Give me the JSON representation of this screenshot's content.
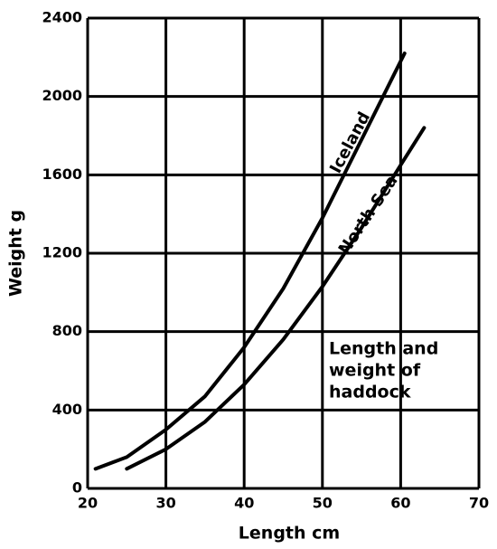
{
  "chart_data": {
    "type": "line",
    "x_label": "Length cm",
    "y_label": "Weight g",
    "annotation": [
      "Length and",
      "weight of",
      "haddock"
    ],
    "xlim": [
      20,
      70
    ],
    "xticks": [
      20,
      30,
      40,
      50,
      60,
      70
    ],
    "ylim": [
      0,
      2400
    ],
    "yticks": [
      0,
      400,
      800,
      1200,
      1600,
      2000,
      2400
    ],
    "grid": true,
    "series": [
      {
        "name": "Iceland",
        "color": "#000000",
        "x": [
          21,
          25,
          30,
          35,
          40,
          45,
          50,
          55,
          60,
          60.5
        ],
        "values": [
          100,
          160,
          300,
          470,
          720,
          1020,
          1380,
          1780,
          2180,
          2220
        ]
      },
      {
        "name": "North Sea",
        "color": "#000000",
        "x": [
          25,
          30,
          35,
          40,
          45,
          50,
          55,
          60,
          63
        ],
        "values": [
          100,
          200,
          340,
          530,
          760,
          1030,
          1330,
          1650,
          1840
        ]
      }
    ]
  }
}
